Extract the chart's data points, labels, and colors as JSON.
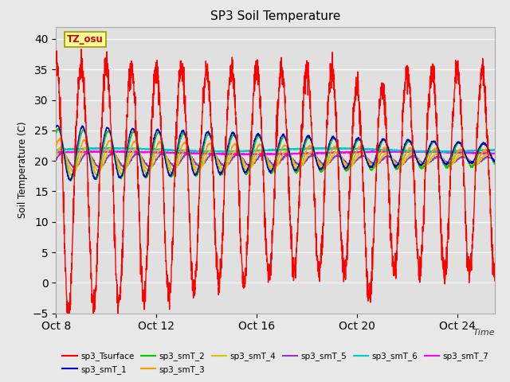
{
  "title": "SP3 Soil Temperature",
  "xlabel": "Time",
  "ylabel": "Soil Temperature (C)",
  "ylim": [
    -5,
    42
  ],
  "yticks": [
    -5,
    0,
    5,
    10,
    15,
    20,
    25,
    30,
    35,
    40
  ],
  "xlim_start": 0,
  "xlim_end": 17.5,
  "xtick_labels": [
    "Oct 8",
    "Oct 12",
    "Oct 16",
    "Oct 20",
    "Oct 24"
  ],
  "xtick_positions": [
    0,
    4,
    8,
    12,
    16
  ],
  "background_color": "#e8e8e8",
  "plot_bg_color": "#e0e0e0",
  "series_colors": {
    "sp3_Tsurface": "#ff0000",
    "sp3_smT_1": "#0000cc",
    "sp3_smT_2": "#00cc00",
    "sp3_smT_3": "#ff9900",
    "sp3_smT_4": "#cccc00",
    "sp3_smT_5": "#9933cc",
    "sp3_smT_6": "#00cccc",
    "sp3_smT_7": "#ff00ff"
  },
  "annotation_text": "TZ_osu",
  "annotation_color": "#cc0000",
  "annotation_bg": "#ffff99",
  "annotation_border": "#999900",
  "figsize": [
    6.4,
    4.8
  ],
  "dpi": 100
}
